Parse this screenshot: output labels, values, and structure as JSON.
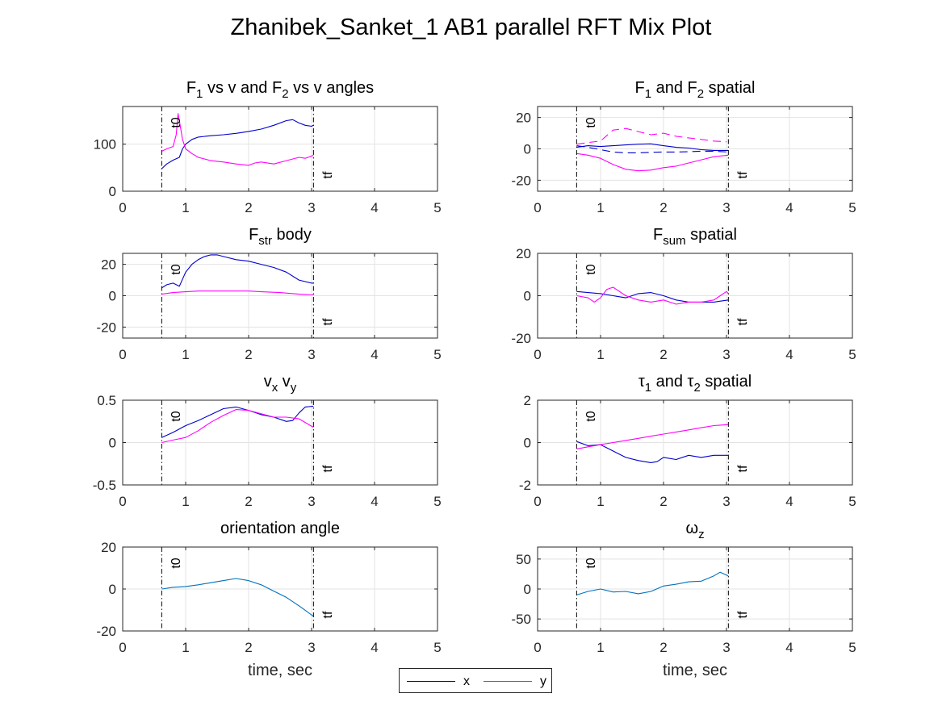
{
  "figure_title": "Zhanibek_Sanket_1 AB1 parallel RFT Mix Plot",
  "legend": [
    {
      "label": "x",
      "color": "#0000cc"
    },
    {
      "label": "y",
      "color": "#ff00ff"
    }
  ],
  "colors": {
    "x": "#0000cc",
    "y": "#ff00ff",
    "single": "#0072bd",
    "axis": "#262626",
    "grid": "#e3e3e3"
  },
  "chart_data": [
    {
      "type": "line",
      "title": "F1 vs v and F2 vs v angles",
      "title_parts": [
        [
          "F"
        ],
        [
          "1",
          "sub"
        ],
        [
          " vs v and F"
        ],
        [
          "2",
          "sub"
        ],
        [
          " vs v angles"
        ]
      ],
      "xlabel": "",
      "ylabel": "",
      "xlim": [
        0,
        5
      ],
      "ylim": [
        0,
        180
      ],
      "xticks": [
        0,
        1,
        2,
        3,
        4,
        5
      ],
      "yticks": [
        0,
        100
      ],
      "markers": [
        {
          "x": 0.62,
          "label": "t0"
        },
        {
          "x": 3.03,
          "label": "tf"
        }
      ],
      "grid": true,
      "series": [
        {
          "name": "x",
          "color": "#0000cc",
          "dash": "solid",
          "x": [
            0.62,
            0.7,
            0.8,
            0.9,
            0.95,
            1.0,
            1.1,
            1.2,
            1.4,
            1.6,
            1.8,
            2.0,
            2.2,
            2.4,
            2.6,
            2.7,
            2.8,
            2.9,
            3.0,
            3.03
          ],
          "y": [
            48,
            58,
            66,
            72,
            90,
            100,
            110,
            115,
            118,
            120,
            123,
            127,
            132,
            140,
            150,
            152,
            145,
            140,
            138,
            140
          ]
        },
        {
          "name": "y",
          "color": "#ff00ff",
          "dash": "solid",
          "x": [
            0.62,
            0.7,
            0.8,
            0.85,
            0.88,
            0.9,
            0.95,
            1.0,
            1.1,
            1.2,
            1.4,
            1.6,
            1.8,
            2.0,
            2.1,
            2.2,
            2.4,
            2.6,
            2.8,
            2.9,
            3.0,
            3.03
          ],
          "y": [
            85,
            90,
            95,
            120,
            165,
            150,
            110,
            90,
            80,
            72,
            65,
            62,
            58,
            55,
            60,
            62,
            58,
            65,
            72,
            70,
            75,
            76
          ]
        }
      ]
    },
    {
      "type": "line",
      "title": "F1 and F2 spatial",
      "title_parts": [
        [
          "F"
        ],
        [
          "1",
          "sub"
        ],
        [
          " and F"
        ],
        [
          "2",
          "sub"
        ],
        [
          " spatial"
        ]
      ],
      "xlabel": "",
      "ylabel": "",
      "xlim": [
        0,
        5
      ],
      "ylim": [
        -27,
        27
      ],
      "xticks": [
        0,
        1,
        2,
        3,
        4,
        5
      ],
      "yticks": [
        -20,
        0,
        20
      ],
      "markers": [
        {
          "x": 0.62,
          "label": "t0"
        },
        {
          "x": 3.03,
          "label": "tf"
        }
      ],
      "grid": true,
      "series": [
        {
          "name": "x",
          "color": "#0000cc",
          "dash": "solid",
          "x": [
            0.62,
            0.8,
            1.0,
            1.2,
            1.4,
            1.6,
            1.8,
            2.0,
            2.2,
            2.4,
            2.6,
            2.8,
            3.03
          ],
          "y": [
            1,
            2,
            1.5,
            2,
            2.5,
            3,
            3.2,
            2,
            1,
            0.5,
            -0.5,
            -1,
            -1
          ]
        },
        {
          "name": "x",
          "color": "#0000cc",
          "dash": "dashed",
          "x": [
            0.62,
            0.8,
            1.0,
            1.2,
            1.4,
            1.6,
            1.8,
            2.0,
            2.2,
            2.4,
            2.6,
            2.8,
            3.03
          ],
          "y": [
            2,
            1,
            -0.5,
            -2,
            -2.5,
            -2.5,
            -2.2,
            -2,
            -2,
            -1.8,
            -1.5,
            -1.5,
            -2
          ]
        },
        {
          "name": "y",
          "color": "#ff00ff",
          "dash": "solid",
          "x": [
            0.62,
            0.8,
            1.0,
            1.2,
            1.4,
            1.6,
            1.8,
            2.0,
            2.2,
            2.4,
            2.6,
            2.8,
            3.03
          ],
          "y": [
            -3,
            -4,
            -6,
            -10,
            -13,
            -14,
            -13.5,
            -12,
            -11,
            -9,
            -7,
            -5,
            -4
          ]
        },
        {
          "name": "y",
          "color": "#ff00ff",
          "dash": "dashed",
          "x": [
            0.62,
            0.8,
            1.0,
            1.2,
            1.4,
            1.6,
            1.8,
            2.0,
            2.2,
            2.4,
            2.6,
            2.8,
            3.0
          ],
          "y": [
            3,
            4,
            5,
            12,
            13,
            11,
            9,
            10,
            8,
            7,
            6,
            5,
            4.5
          ]
        }
      ]
    },
    {
      "type": "line",
      "title": "Fstr body",
      "title_parts": [
        [
          "F"
        ],
        [
          "str",
          "sub"
        ],
        [
          " body"
        ]
      ],
      "xlabel": "",
      "ylabel": "",
      "xlim": [
        0,
        5
      ],
      "ylim": [
        -27,
        27
      ],
      "xticks": [
        0,
        1,
        2,
        3,
        4,
        5
      ],
      "yticks": [
        -20,
        0,
        20
      ],
      "markers": [
        {
          "x": 0.62,
          "label": "t0"
        },
        {
          "x": 3.03,
          "label": "tf"
        }
      ],
      "grid": true,
      "series": [
        {
          "name": "x",
          "color": "#0000cc",
          "dash": "solid",
          "x": [
            0.62,
            0.7,
            0.8,
            0.9,
            1.0,
            1.1,
            1.2,
            1.3,
            1.4,
            1.5,
            1.6,
            1.8,
            2.0,
            2.2,
            2.4,
            2.6,
            2.8,
            3.0,
            3.03
          ],
          "y": [
            5,
            7,
            8,
            6,
            15,
            20,
            23,
            25,
            26,
            26,
            25,
            23,
            22,
            20,
            18,
            15,
            10,
            8,
            8
          ]
        },
        {
          "name": "y",
          "color": "#ff00ff",
          "dash": "solid",
          "x": [
            0.62,
            0.8,
            1.0,
            1.2,
            1.5,
            1.8,
            2.0,
            2.2,
            2.5,
            2.8,
            3.03
          ],
          "y": [
            1,
            2,
            2.5,
            3,
            3,
            3,
            3,
            2.5,
            2,
            1,
            0.5
          ]
        }
      ]
    },
    {
      "type": "line",
      "title": "Fsum spatial",
      "title_parts": [
        [
          "F"
        ],
        [
          "sum",
          "sub"
        ],
        [
          " spatial"
        ]
      ],
      "xlabel": "",
      "ylabel": "",
      "xlim": [
        0,
        5
      ],
      "ylim": [
        -20,
        20
      ],
      "xticks": [
        0,
        1,
        2,
        3,
        4,
        5
      ],
      "yticks": [
        -20,
        0,
        20
      ],
      "markers": [
        {
          "x": 0.62,
          "label": "t0"
        },
        {
          "x": 3.03,
          "label": "tf"
        }
      ],
      "grid": true,
      "series": [
        {
          "name": "x",
          "color": "#0000cc",
          "dash": "solid",
          "x": [
            0.62,
            0.8,
            1.0,
            1.2,
            1.4,
            1.6,
            1.8,
            2.0,
            2.2,
            2.4,
            2.6,
            2.8,
            3.03
          ],
          "y": [
            2,
            1.5,
            1,
            0,
            -1,
            1,
            1.5,
            0,
            -2,
            -3,
            -3,
            -3,
            -2
          ]
        },
        {
          "name": "y",
          "color": "#ff00ff",
          "dash": "solid",
          "x": [
            0.62,
            0.8,
            0.9,
            1.0,
            1.1,
            1.2,
            1.4,
            1.6,
            1.8,
            2.0,
            2.2,
            2.4,
            2.6,
            2.8,
            3.0,
            3.03
          ],
          "y": [
            0,
            -1,
            -3,
            -1,
            3,
            4,
            0,
            -2,
            -3,
            -2,
            -4,
            -3,
            -3,
            -2,
            2,
            1
          ]
        }
      ]
    },
    {
      "type": "line",
      "title": "vx vy",
      "title_parts": [
        [
          "v"
        ],
        [
          "x",
          "sub"
        ],
        [
          " v"
        ],
        [
          "y",
          "sub"
        ]
      ],
      "xlabel": "",
      "ylabel": "",
      "xlim": [
        0,
        5
      ],
      "ylim": [
        -0.5,
        0.5
      ],
      "xticks": [
        0,
        1,
        2,
        3,
        4,
        5
      ],
      "yticks": [
        -0.5,
        0,
        0.5
      ],
      "markers": [
        {
          "x": 0.62,
          "label": "t0"
        },
        {
          "x": 3.03,
          "label": "tf"
        }
      ],
      "grid": true,
      "series": [
        {
          "name": "x",
          "color": "#0000cc",
          "dash": "solid",
          "x": [
            0.62,
            0.8,
            1.0,
            1.2,
            1.4,
            1.6,
            1.8,
            2.0,
            2.2,
            2.4,
            2.6,
            2.7,
            2.8,
            2.9,
            3.03
          ],
          "y": [
            0.06,
            0.12,
            0.2,
            0.26,
            0.33,
            0.4,
            0.42,
            0.38,
            0.33,
            0.3,
            0.25,
            0.26,
            0.35,
            0.42,
            0.43
          ]
        },
        {
          "name": "y",
          "color": "#ff00ff",
          "dash": "solid",
          "x": [
            0.62,
            0.8,
            1.0,
            1.2,
            1.4,
            1.6,
            1.8,
            2.0,
            2.2,
            2.4,
            2.6,
            2.8,
            3.03
          ],
          "y": [
            0.0,
            0.03,
            0.06,
            0.14,
            0.24,
            0.32,
            0.39,
            0.38,
            0.34,
            0.3,
            0.3,
            0.28,
            0.18
          ]
        }
      ]
    },
    {
      "type": "line",
      "title": "τ1 and τ2 spatial",
      "title_parts": [
        [
          "τ"
        ],
        [
          "1",
          "sub"
        ],
        [
          " and "
        ],
        [
          "τ"
        ],
        [
          "2",
          "sub"
        ],
        [
          " spatial"
        ]
      ],
      "xlabel": "",
      "ylabel": "",
      "xlim": [
        0,
        5
      ],
      "ylim": [
        -2,
        2
      ],
      "xticks": [
        0,
        1,
        2,
        3,
        4,
        5
      ],
      "yticks": [
        -2,
        0,
        2
      ],
      "markers": [
        {
          "x": 0.62,
          "label": "t0"
        },
        {
          "x": 3.03,
          "label": "tf"
        }
      ],
      "grid": true,
      "series": [
        {
          "name": "x",
          "color": "#0000cc",
          "dash": "solid",
          "x": [
            0.62,
            0.8,
            1.0,
            1.2,
            1.4,
            1.6,
            1.8,
            1.9,
            2.0,
            2.2,
            2.4,
            2.6,
            2.8,
            3.03
          ],
          "y": [
            0.05,
            -0.15,
            -0.1,
            -0.4,
            -0.7,
            -0.85,
            -0.95,
            -0.9,
            -0.7,
            -0.8,
            -0.6,
            -0.7,
            -0.6,
            -0.6
          ]
        },
        {
          "name": "y",
          "color": "#ff00ff",
          "dash": "solid",
          "x": [
            0.62,
            0.8,
            1.0,
            1.2,
            1.4,
            1.6,
            1.8,
            2.0,
            2.2,
            2.4,
            2.6,
            2.8,
            3.03
          ],
          "y": [
            -0.3,
            -0.2,
            -0.1,
            0.0,
            0.1,
            0.2,
            0.3,
            0.4,
            0.5,
            0.6,
            0.7,
            0.8,
            0.85
          ]
        }
      ]
    },
    {
      "type": "line",
      "title": "orientation angle",
      "title_parts": [
        [
          "orientation angle"
        ]
      ],
      "xlabel": "time, sec",
      "ylabel": "",
      "xlim": [
        0,
        5
      ],
      "ylim": [
        -20,
        20
      ],
      "xticks": [
        0,
        1,
        2,
        3,
        4,
        5
      ],
      "yticks": [
        -20,
        0,
        20
      ],
      "markers": [
        {
          "x": 0.62,
          "label": "t0"
        },
        {
          "x": 3.03,
          "label": "tf"
        }
      ],
      "grid": true,
      "series": [
        {
          "name": "orientation",
          "color": "#0072bd",
          "dash": "solid",
          "x": [
            0.62,
            0.8,
            1.0,
            1.2,
            1.4,
            1.6,
            1.8,
            2.0,
            2.2,
            2.4,
            2.6,
            2.8,
            3.03
          ],
          "y": [
            0,
            0.8,
            1.2,
            2,
            3,
            4,
            5,
            4,
            2,
            -1,
            -4,
            -8,
            -13
          ]
        }
      ]
    },
    {
      "type": "line",
      "title": "ωz",
      "title_parts": [
        [
          "ω"
        ],
        [
          "z",
          "sub"
        ]
      ],
      "xlabel": "time, sec",
      "ylabel": "",
      "xlim": [
        0,
        5
      ],
      "ylim": [
        -70,
        70
      ],
      "xticks": [
        0,
        1,
        2,
        3,
        4,
        5
      ],
      "yticks": [
        -50,
        0,
        50
      ],
      "markers": [
        {
          "x": 0.62,
          "label": "t0"
        },
        {
          "x": 3.03,
          "label": "tf"
        }
      ],
      "grid": true,
      "series": [
        {
          "name": "omega",
          "color": "#0072bd",
          "dash": "solid",
          "x": [
            0.62,
            0.8,
            1.0,
            1.2,
            1.4,
            1.6,
            1.8,
            2.0,
            2.2,
            2.4,
            2.6,
            2.8,
            2.9,
            3.03
          ],
          "y": [
            -10,
            -4,
            0,
            -5,
            -4,
            -8,
            -4,
            5,
            8,
            12,
            13,
            22,
            28,
            22
          ]
        }
      ]
    }
  ]
}
